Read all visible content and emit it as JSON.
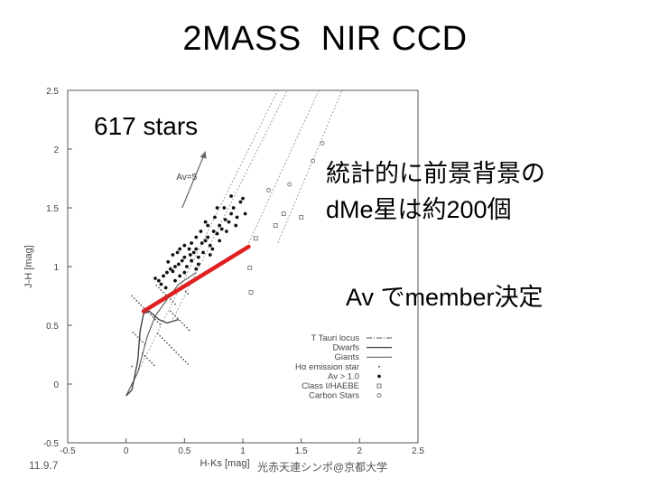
{
  "slide": {
    "title": "2MASS  NIR CCD",
    "star_count": "617 stars",
    "note_line1": "統計的に前景背景の",
    "note_line2": "dMe星は約200個",
    "note_av": "Av でmember決定",
    "date": "11.9.7",
    "footer": "光赤天連シンポ@京都大学"
  },
  "colors": {
    "background": "#ffffff",
    "text": "#000000",
    "plot_ink": "#555555",
    "red_line": "#e02020"
  },
  "chart_data": {
    "type": "scatter",
    "xlabel": "H-Ks [mag]",
    "ylabel": "J-H [mag]",
    "xlim": [
      -0.5,
      2.5
    ],
    "ylim": [
      -0.5,
      2.5
    ],
    "xticks": [
      "-0.5",
      "0",
      "0.5",
      "1",
      "1.5",
      "2",
      "2.5"
    ],
    "yticks": [
      "-0.5",
      "0",
      "0.5",
      "1",
      "1.5",
      "2",
      "2.5"
    ],
    "reddening_arrow_label": "Av=5",
    "reddening_arrow": {
      "from": [
        0.48,
        1.5
      ],
      "to": [
        0.68,
        1.98
      ]
    },
    "legend": [
      {
        "label": "T Tauri locus",
        "style": "dash-dot line"
      },
      {
        "label": "Dwarfs",
        "style": "solid line"
      },
      {
        "label": "Giants",
        "style": "solid line"
      },
      {
        "label": "Hα emission star",
        "style": "small dot"
      },
      {
        "label": "Av > 1.0",
        "style": "filled dot"
      },
      {
        "label": "Class I/HAEBE",
        "style": "open square"
      },
      {
        "label": "Carbon Stars",
        "style": "open circle"
      }
    ],
    "dwarf_track": [
      [
        0.0,
        -0.1
      ],
      [
        0.05,
        -0.05
      ],
      [
        0.1,
        0.2
      ],
      [
        0.12,
        0.45
      ],
      [
        0.15,
        0.6
      ],
      [
        0.2,
        0.62
      ],
      [
        0.28,
        0.55
      ],
      [
        0.35,
        0.52
      ],
      [
        0.45,
        0.55
      ]
    ],
    "giant_track": [
      [
        0.0,
        -0.1
      ],
      [
        0.1,
        0.1
      ],
      [
        0.18,
        0.4
      ],
      [
        0.25,
        0.58
      ],
      [
        0.35,
        0.72
      ],
      [
        0.45,
        0.85
      ],
      [
        0.6,
        0.95
      ]
    ],
    "reddening_bands": [
      {
        "from": [
          0.0,
          -0.1
        ],
        "to": [
          1.3,
          2.5
        ]
      },
      {
        "from": [
          0.4,
          0.55
        ],
        "to": [
          1.38,
          2.5
        ]
      },
      {
        "from": [
          1.05,
          1.2
        ],
        "to": [
          1.65,
          2.5
        ]
      },
      {
        "from": [
          1.3,
          1.2
        ],
        "to": [
          1.85,
          2.5
        ]
      }
    ],
    "red_line": {
      "from": [
        0.15,
        0.62
      ],
      "to": [
        1.05,
        1.17
      ]
    },
    "class1_haebe": [
      [
        1.06,
        0.99
      ],
      [
        1.07,
        0.78
      ],
      [
        1.11,
        1.24
      ],
      [
        1.28,
        1.35
      ],
      [
        1.35,
        1.45
      ],
      [
        1.5,
        1.42
      ]
    ],
    "carbon_stars": [
      [
        1.22,
        1.65
      ],
      [
        1.4,
        1.7
      ],
      [
        1.6,
        1.9
      ],
      [
        1.68,
        2.05
      ]
    ],
    "av_gt_1_points": [
      [
        0.32,
        0.92
      ],
      [
        0.35,
        0.95
      ],
      [
        0.38,
        0.98
      ],
      [
        0.4,
        0.96
      ],
      [
        0.42,
        1.0
      ],
      [
        0.45,
        1.02
      ],
      [
        0.48,
        1.05
      ],
      [
        0.5,
        1.08
      ],
      [
        0.52,
        1.0
      ],
      [
        0.55,
        1.1
      ],
      [
        0.58,
        1.12
      ],
      [
        0.6,
        1.15
      ],
      [
        0.62,
        1.08
      ],
      [
        0.65,
        1.2
      ],
      [
        0.68,
        1.22
      ],
      [
        0.7,
        1.25
      ],
      [
        0.72,
        1.18
      ],
      [
        0.75,
        1.3
      ],
      [
        0.78,
        1.28
      ],
      [
        0.8,
        1.35
      ],
      [
        0.82,
        1.32
      ],
      [
        0.85,
        1.4
      ],
      [
        0.88,
        1.38
      ],
      [
        0.9,
        1.45
      ],
      [
        0.92,
        1.5
      ],
      [
        0.95,
        1.42
      ],
      [
        0.98,
        1.55
      ],
      [
        1.0,
        1.58
      ],
      [
        0.36,
        1.04
      ],
      [
        0.4,
        1.1
      ],
      [
        0.44,
        1.12
      ],
      [
        0.46,
        0.92
      ],
      [
        0.5,
        0.95
      ],
      [
        0.54,
        1.15
      ],
      [
        0.56,
        1.05
      ],
      [
        0.6,
        1.25
      ],
      [
        0.64,
        1.3
      ],
      [
        0.66,
        1.12
      ],
      [
        0.7,
        1.35
      ],
      [
        0.74,
        1.15
      ],
      [
        0.76,
        1.42
      ],
      [
        0.8,
        1.22
      ],
      [
        0.84,
        1.5
      ],
      [
        0.3,
        0.85
      ],
      [
        0.28,
        0.88
      ],
      [
        0.34,
        0.82
      ],
      [
        0.25,
        0.9
      ],
      [
        0.42,
        0.88
      ],
      [
        0.5,
        1.18
      ],
      [
        0.56,
        1.2
      ],
      [
        0.62,
        1.02
      ],
      [
        0.68,
        1.38
      ],
      [
        0.72,
        1.1
      ],
      [
        0.78,
        1.5
      ],
      [
        0.86,
        1.3
      ],
      [
        0.9,
        1.6
      ],
      [
        0.94,
        1.35
      ],
      [
        1.02,
        1.45
      ],
      [
        0.6,
        0.98
      ],
      [
        0.46,
        1.15
      ]
    ]
  }
}
